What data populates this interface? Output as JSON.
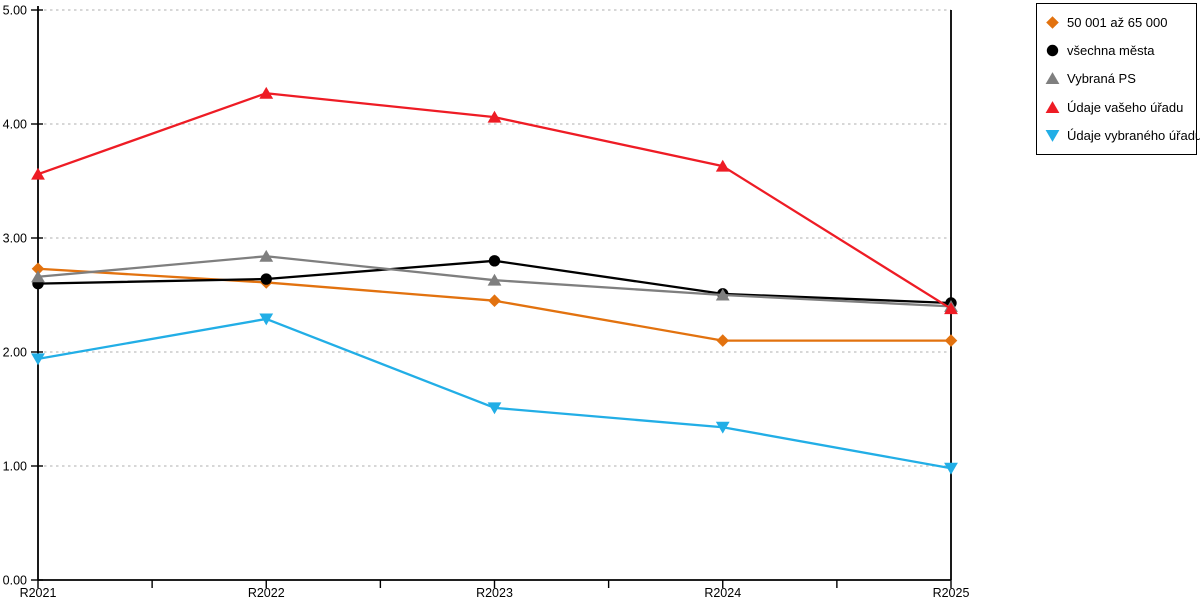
{
  "chart_data": {
    "type": "line",
    "title": "",
    "x": [
      "R2021",
      "R2022",
      "R2023",
      "R2024",
      "R2025"
    ],
    "series": [
      {
        "name": "50 001 až 65 000",
        "marker": "diamond",
        "color": "#E2720F",
        "values": [
          2.73,
          2.61,
          2.45,
          2.1,
          2.1
        ]
      },
      {
        "name": "všechna města",
        "marker": "circle",
        "color": "#000000",
        "values": [
          2.6,
          2.64,
          2.8,
          2.51,
          2.43
        ]
      },
      {
        "name": "Vybraná PS",
        "marker": "triangle-up",
        "color": "#7F7F7F",
        "values": [
          2.66,
          2.84,
          2.63,
          2.5,
          2.4
        ]
      },
      {
        "name": "Údaje vašeho úřadu",
        "marker": "triangle-up",
        "color": "#EE1C25",
        "values": [
          3.56,
          4.27,
          4.06,
          3.63,
          2.38
        ]
      },
      {
        "name": "Údaje vybraného úřadu",
        "marker": "triangle-down",
        "color": "#22AEE6",
        "values": [
          1.94,
          2.29,
          1.51,
          1.34,
          0.98
        ]
      }
    ],
    "ylim": [
      0,
      5
    ],
    "ytick_labels": [
      "0.00",
      "1.00",
      "2.00",
      "3.00",
      "4.00",
      "5.00"
    ],
    "grid": "horizontal-dotted",
    "gridline_color": "#BFBFBF",
    "axis_color": "#000000",
    "legend_position": "outside-top-right"
  }
}
